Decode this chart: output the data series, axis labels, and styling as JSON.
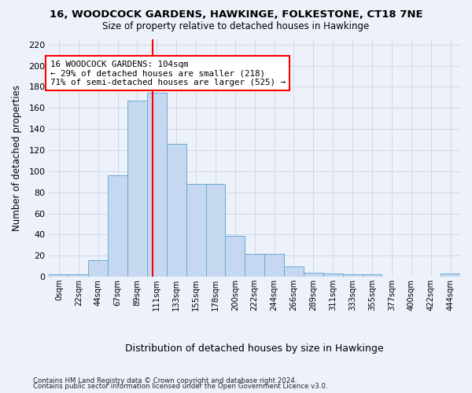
{
  "title": "16, WOODCOCK GARDENS, HAWKINGE, FOLKESTONE, CT18 7NE",
  "subtitle": "Size of property relative to detached houses in Hawkinge",
  "xlabel": "Distribution of detached houses by size in Hawkinge",
  "ylabel": "Number of detached properties",
  "bar_color": "#c5d8f0",
  "bar_edge_color": "#6aaad4",
  "bin_labels": [
    "0sqm",
    "22sqm",
    "44sqm",
    "67sqm",
    "89sqm",
    "111sqm",
    "133sqm",
    "155sqm",
    "178sqm",
    "200sqm",
    "222sqm",
    "244sqm",
    "266sqm",
    "289sqm",
    "311sqm",
    "333sqm",
    "355sqm",
    "377sqm",
    "400sqm",
    "422sqm",
    "444sqm"
  ],
  "bar_heights": [
    2,
    2,
    16,
    96,
    167,
    174,
    126,
    88,
    88,
    39,
    22,
    22,
    10,
    4,
    3,
    2,
    2,
    0,
    0,
    0,
    3
  ],
  "property_line_x": 4.77,
  "annotation_text": "16 WOODCOCK GARDENS: 104sqm\n← 29% of detached houses are smaller (218)\n71% of semi-detached houses are larger (525) →",
  "annotation_box_color": "white",
  "annotation_box_edge_color": "red",
  "vline_color": "red",
  "ylim": [
    0,
    225
  ],
  "yticks": [
    0,
    20,
    40,
    60,
    80,
    100,
    120,
    140,
    160,
    180,
    200,
    220
  ],
  "footnote1": "Contains HM Land Registry data © Crown copyright and database right 2024.",
  "footnote2": "Contains public sector information licensed under the Open Government Licence v3.0.",
  "bg_color": "#edf2fa",
  "grid_color": "#d0d8e8",
  "figsize": [
    6.0,
    5.0
  ],
  "dpi": 100
}
